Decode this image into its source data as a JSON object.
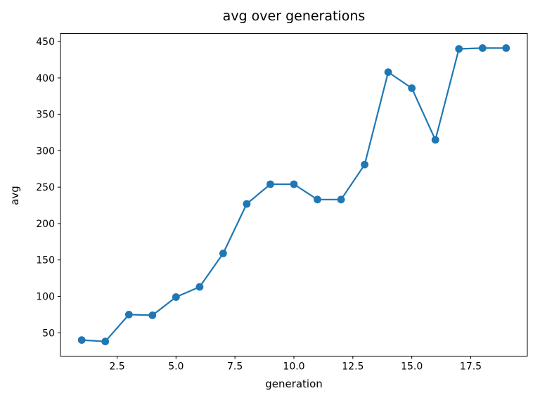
{
  "chart_data": {
    "type": "line",
    "title": "avg over generations",
    "xlabel": "generation",
    "ylabel": "avg",
    "series": [
      {
        "name": "avg",
        "x": [
          1,
          2,
          3,
          4,
          5,
          6,
          7,
          8,
          9,
          10,
          11,
          12,
          13,
          14,
          15,
          16,
          17,
          18,
          19
        ],
        "y": [
          40,
          38,
          75,
          74,
          99,
          113,
          159,
          227,
          254,
          254,
          233,
          233,
          281,
          408,
          386,
          315,
          440,
          441,
          441
        ],
        "color": "#1f77b4",
        "marker": "circle"
      }
    ],
    "x_ticks": [
      2.5,
      5.0,
      7.5,
      10.0,
      12.5,
      15.0,
      17.5
    ],
    "x_tick_labels": [
      "2.5",
      "5.0",
      "7.5",
      "10.0",
      "12.5",
      "15.0",
      "17.5"
    ],
    "y_ticks": [
      50,
      100,
      150,
      200,
      250,
      300,
      350,
      400,
      450
    ],
    "y_tick_labels": [
      "50",
      "100",
      "150",
      "200",
      "250",
      "300",
      "350",
      "400",
      "450"
    ],
    "xlim": [
      0.1,
      19.9
    ],
    "ylim": [
      17.9,
      461.2
    ],
    "grid": false,
    "legend": null,
    "frame_color": "#000000",
    "background_color": "#ffffff"
  }
}
